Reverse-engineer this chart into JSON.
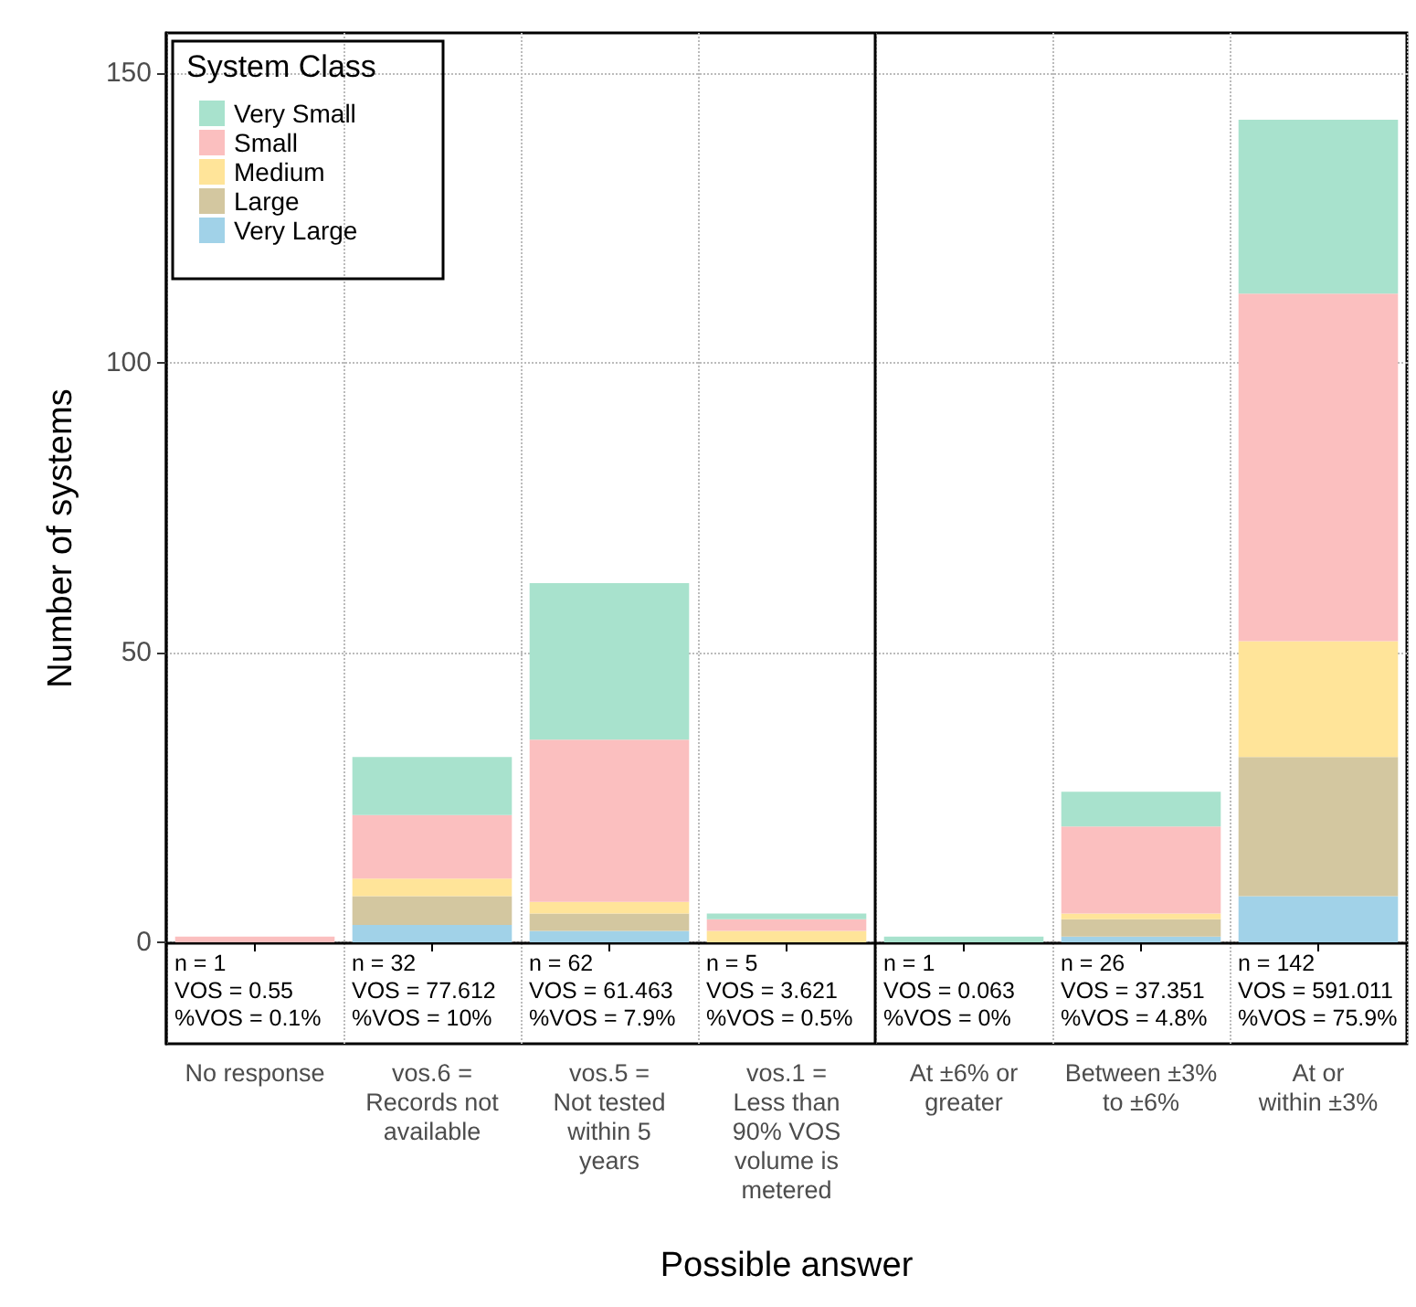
{
  "chart_data": {
    "type": "bar",
    "stacked": true,
    "xlabel": "Possible answer",
    "ylabel": "Number of systems",
    "legend_title": "System Class",
    "legend": "top left",
    "grid": true,
    "categories": [
      "No response",
      "vos.6 =\nRecords not\navailable",
      "vos.5 =\nNot tested\nwithin 5\nyears",
      "vos.1 =\nLess than\n90% VOS\nvolume is\nmetered",
      "At ±6% or\ngreater",
      "Between ±3%\nto ±6%",
      "At or\nwithin ±3%"
    ],
    "ylim": [
      -17.5,
      157
    ],
    "yticks": [
      0,
      50,
      100,
      150
    ],
    "series": [
      {
        "name": "Very Large",
        "color": "#a1d2e8",
        "values": [
          0,
          3,
          2,
          0,
          0,
          1,
          8
        ]
      },
      {
        "name": "Large",
        "color": "#d3c7a0",
        "values": [
          0,
          5,
          3,
          0,
          0,
          3,
          24
        ]
      },
      {
        "name": "Medium",
        "color": "#ffe499",
        "values": [
          0,
          3,
          2,
          2,
          0,
          1,
          20
        ]
      },
      {
        "name": "Small",
        "color": "#fbbfbf",
        "values": [
          1,
          11,
          28,
          2,
          0,
          15,
          60
        ]
      },
      {
        "name": "Very Small",
        "color": "#a8e2cd",
        "values": [
          0,
          10,
          27,
          1,
          1,
          6,
          30
        ]
      }
    ],
    "annotations": [
      {
        "text": "n = 1\nVOS = 0.55\n%VOS = 0.1%",
        "x": "No response",
        "y": 0
      },
      {
        "text": "n = 32\nVOS = 77.612\n%VOS = 10%",
        "x": "vos.6 =\nRecords not\navailable",
        "y": 0
      },
      {
        "text": "n = 62\nVOS = 61.463\n%VOS = 7.9%",
        "x": "vos.5 =\nNot tested\nwithin 5\nyears",
        "y": 0
      },
      {
        "text": "n = 5\nVOS = 3.621\n%VOS = 0.5%",
        "x": "vos.1 =\nLess than\n90% VOS\nvolume is\nmetered",
        "y": 0
      },
      {
        "text": "n = 1\nVOS = 0.063\n%VOS = 0%",
        "x": "At ±6% or\ngreater",
        "y": 0
      },
      {
        "text": "n = 26\nVOS = 37.351\n%VOS = 4.8%",
        "x": "Between ±3%\nto ±6%",
        "y": 0
      },
      {
        "text": "n = 142\nVOS = 591.011\n%VOS = 75.9%",
        "x": "At or\nwithin ±3%",
        "y": 0
      }
    ]
  }
}
